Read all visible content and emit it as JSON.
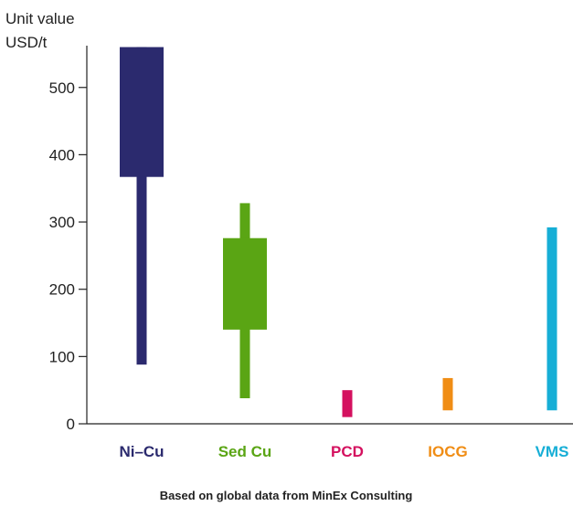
{
  "chart_data": {
    "type": "range-bar",
    "ylabel_line1": "Unit value",
    "ylabel_line2": "USD/t",
    "ylim": [
      0,
      560
    ],
    "yticks": [
      0,
      100,
      200,
      300,
      400,
      500
    ],
    "grid": false,
    "footnote": "Based on global data from MinEx Consulting",
    "categories": [
      {
        "name": "Ni–Cu",
        "color": "#2b2a6e",
        "min": 88,
        "max": 560,
        "q_low": 367,
        "q_high": 560
      },
      {
        "name": "Sed Cu",
        "color": "#5aa514",
        "min": 38,
        "max": 328,
        "q_low": 140,
        "q_high": 276
      },
      {
        "name": "PCD",
        "color": "#d4115f",
        "min": 10,
        "max": 50,
        "q_low": null,
        "q_high": null
      },
      {
        "name": "IOCG",
        "color": "#f08d15",
        "min": 20,
        "max": 68,
        "q_low": null,
        "q_high": null
      },
      {
        "name": "VMS",
        "color": "#16aed6",
        "min": 20,
        "max": 292,
        "q_low": null,
        "q_high": null
      }
    ]
  }
}
